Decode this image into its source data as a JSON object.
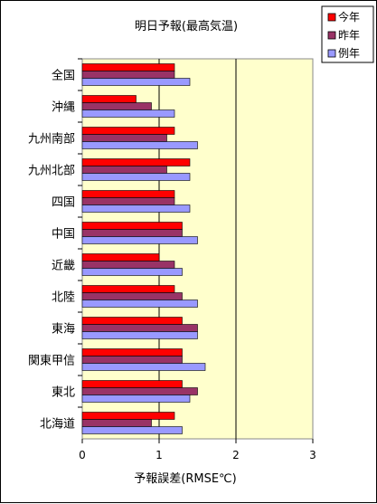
{
  "chart_data": {
    "type": "bar",
    "orientation": "horizontal",
    "title": "明日予報(最高気温)",
    "xlabel": "予報誤差(RMSE℃)",
    "ylabel": "",
    "xlim": [
      0,
      3
    ],
    "xticks": [
      "0",
      "1",
      "2",
      "3"
    ],
    "grid": "vertical",
    "legend_position": "top-right",
    "categories": [
      "全国",
      "沖縄",
      "九州南部",
      "九州北部",
      "四国",
      "中国",
      "近畿",
      "北陸",
      "東海",
      "関東甲信",
      "東北",
      "北海道"
    ],
    "series": [
      {
        "name": "今年",
        "color": "#ff0000",
        "values": [
          1.2,
          0.7,
          1.2,
          1.4,
          1.2,
          1.3,
          1.0,
          1.2,
          1.3,
          1.3,
          1.3,
          1.2
        ]
      },
      {
        "name": "昨年",
        "color": "#993366",
        "values": [
          1.2,
          0.9,
          1.1,
          1.1,
          1.2,
          1.3,
          1.2,
          1.3,
          1.5,
          1.3,
          1.5,
          0.9
        ]
      },
      {
        "name": "例年",
        "color": "#9999ff",
        "values": [
          1.4,
          1.2,
          1.5,
          1.4,
          1.4,
          1.5,
          1.3,
          1.5,
          1.5,
          1.6,
          1.4,
          1.3
        ]
      }
    ],
    "plot_background": "#ffffcc"
  }
}
